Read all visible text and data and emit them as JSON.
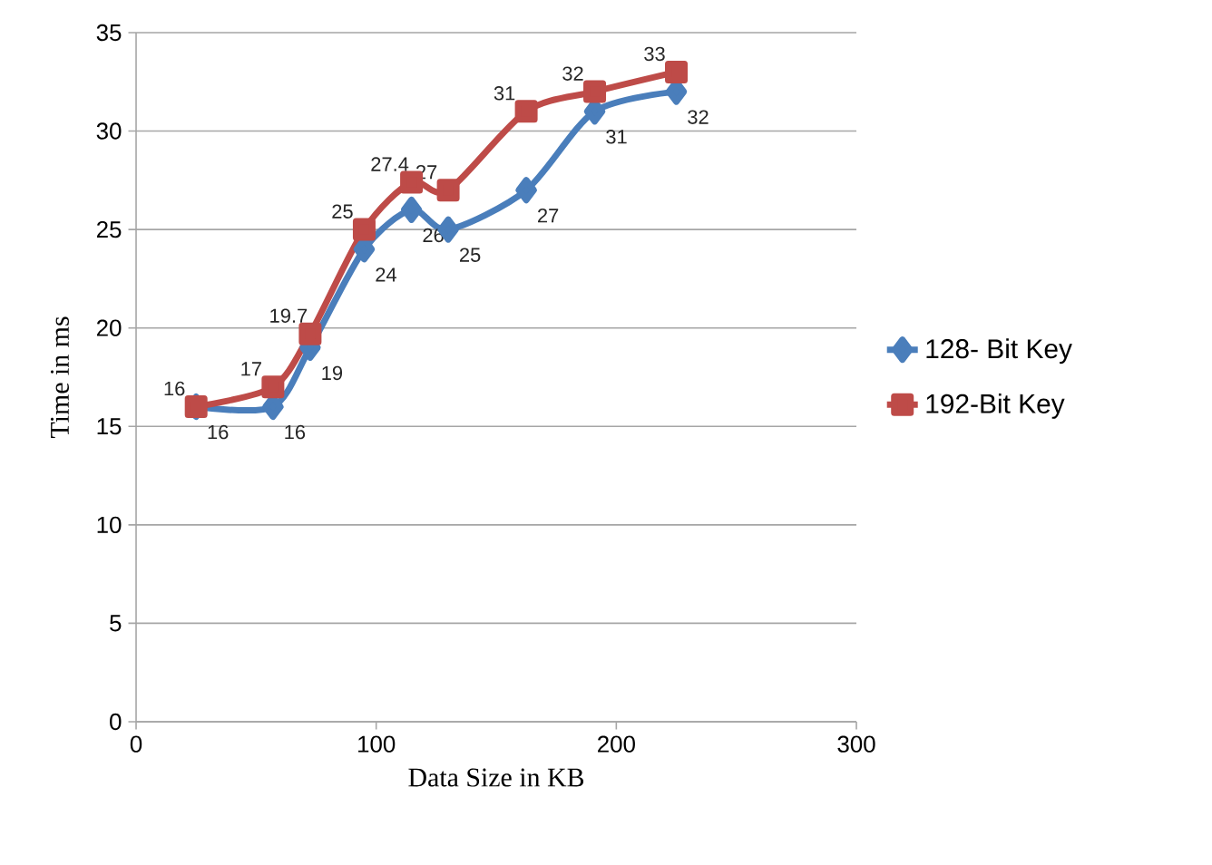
{
  "chart_data": {
    "type": "line",
    "xlabel": "Data Size in KB",
    "ylabel": "Time in ms",
    "xlim": [
      0,
      300
    ],
    "xticks": [
      0,
      100,
      200,
      300
    ],
    "ylim": [
      0,
      35
    ],
    "yticks": [
      0,
      5,
      10,
      15,
      20,
      25,
      30,
      35
    ],
    "grid": "y",
    "legend": "right",
    "data_labels": true,
    "x": [
      25,
      57,
      72.5,
      95,
      114.7,
      130,
      162.5,
      191,
      225
    ],
    "series": [
      {
        "name": "128- Bit Key",
        "color": "#4a7ebb",
        "marker": "diamond",
        "values": [
          16,
          16,
          19,
          24,
          26,
          25,
          27,
          31,
          32
        ]
      },
      {
        "name": "192-Bit Key",
        "color": "#be4b48",
        "marker": "square",
        "values": [
          16,
          17,
          19.7,
          25,
          27.4,
          27,
          31,
          32,
          33
        ]
      }
    ]
  }
}
